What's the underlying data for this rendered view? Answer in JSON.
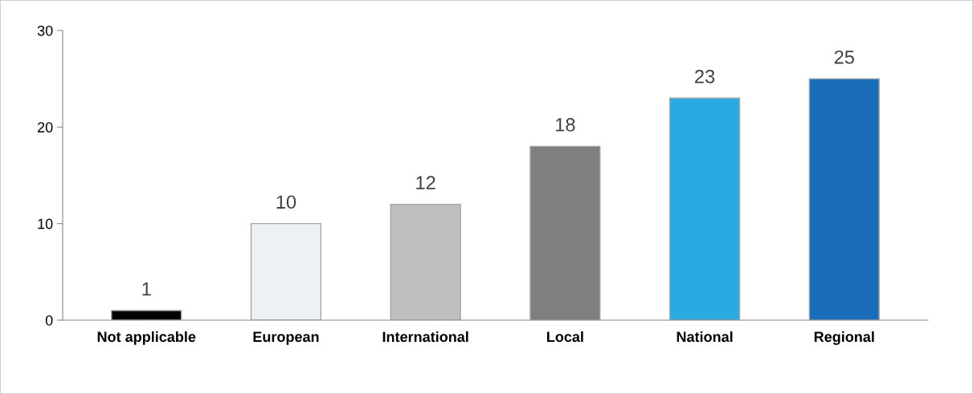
{
  "chart_data": {
    "type": "bar",
    "categories": [
      "Not applicable",
      "European",
      "International",
      "Local",
      "National",
      "Regional"
    ],
    "values": [
      1,
      10,
      12,
      18,
      23,
      25
    ],
    "colors": [
      "#000000",
      "#eef1f3",
      "#bfbfbf",
      "#7f7f7f",
      "#29abe2",
      "#1a6db8"
    ],
    "ylim": [
      0,
      30
    ],
    "yticks": [
      0,
      10,
      20,
      30
    ],
    "grid": false,
    "data_labels": true,
    "legend": false
  }
}
